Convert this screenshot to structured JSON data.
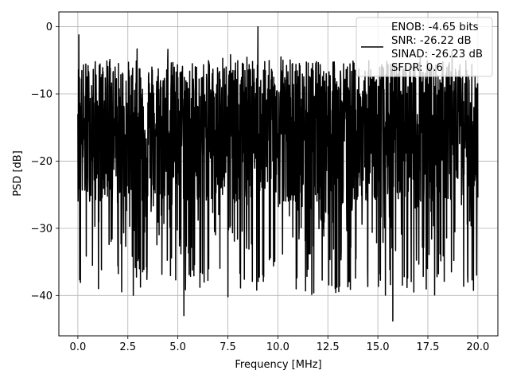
{
  "chart_data": {
    "type": "line",
    "title": "",
    "xlabel": "Frequency [MHz]",
    "ylabel": "PSD [dB]",
    "xlim": [
      -0.95,
      21.0
    ],
    "ylim": [
      -46.0,
      2.2
    ],
    "xticks": [
      0.0,
      2.5,
      5.0,
      7.5,
      10.0,
      12.5,
      15.0,
      17.5,
      20.0
    ],
    "xtick_labels": [
      "0.0",
      "2.5",
      "5.0",
      "7.5",
      "10.0",
      "12.5",
      "15.0",
      "17.5",
      "20.0"
    ],
    "yticks": [
      0,
      -10,
      -20,
      -30,
      -40
    ],
    "ytick_labels": [
      "0",
      "−10",
      "−20",
      "−30",
      "−40"
    ],
    "grid": true,
    "legend_position": "top-right",
    "legend": [
      "ENOB: -4.65 bits",
      "SNR: -26.22 dB",
      "SINAD: -26.23 dB",
      "SFDR: 0.6"
    ],
    "series": [
      {
        "color": "#000000",
        "x_range": [
          0.0,
          20.0
        ],
        "points": 2000,
        "envelope_mean_db": -15,
        "envelope_min_db": -43,
        "envelope_max_db": 0
      }
    ],
    "notable_points": [
      {
        "x": 0.05,
        "y": -1.2
      },
      {
        "x": 9.0,
        "y": 0.0
      },
      {
        "x": 5.3,
        "y": -43.0
      },
      {
        "x": 15.75,
        "y": -43.8
      },
      {
        "x": 7.5,
        "y": -40.2
      },
      {
        "x": 13.5,
        "y": -38.7
      },
      {
        "x": 19.5,
        "y": -38.0
      },
      {
        "x": 2.0,
        "y": -35.6
      }
    ]
  }
}
